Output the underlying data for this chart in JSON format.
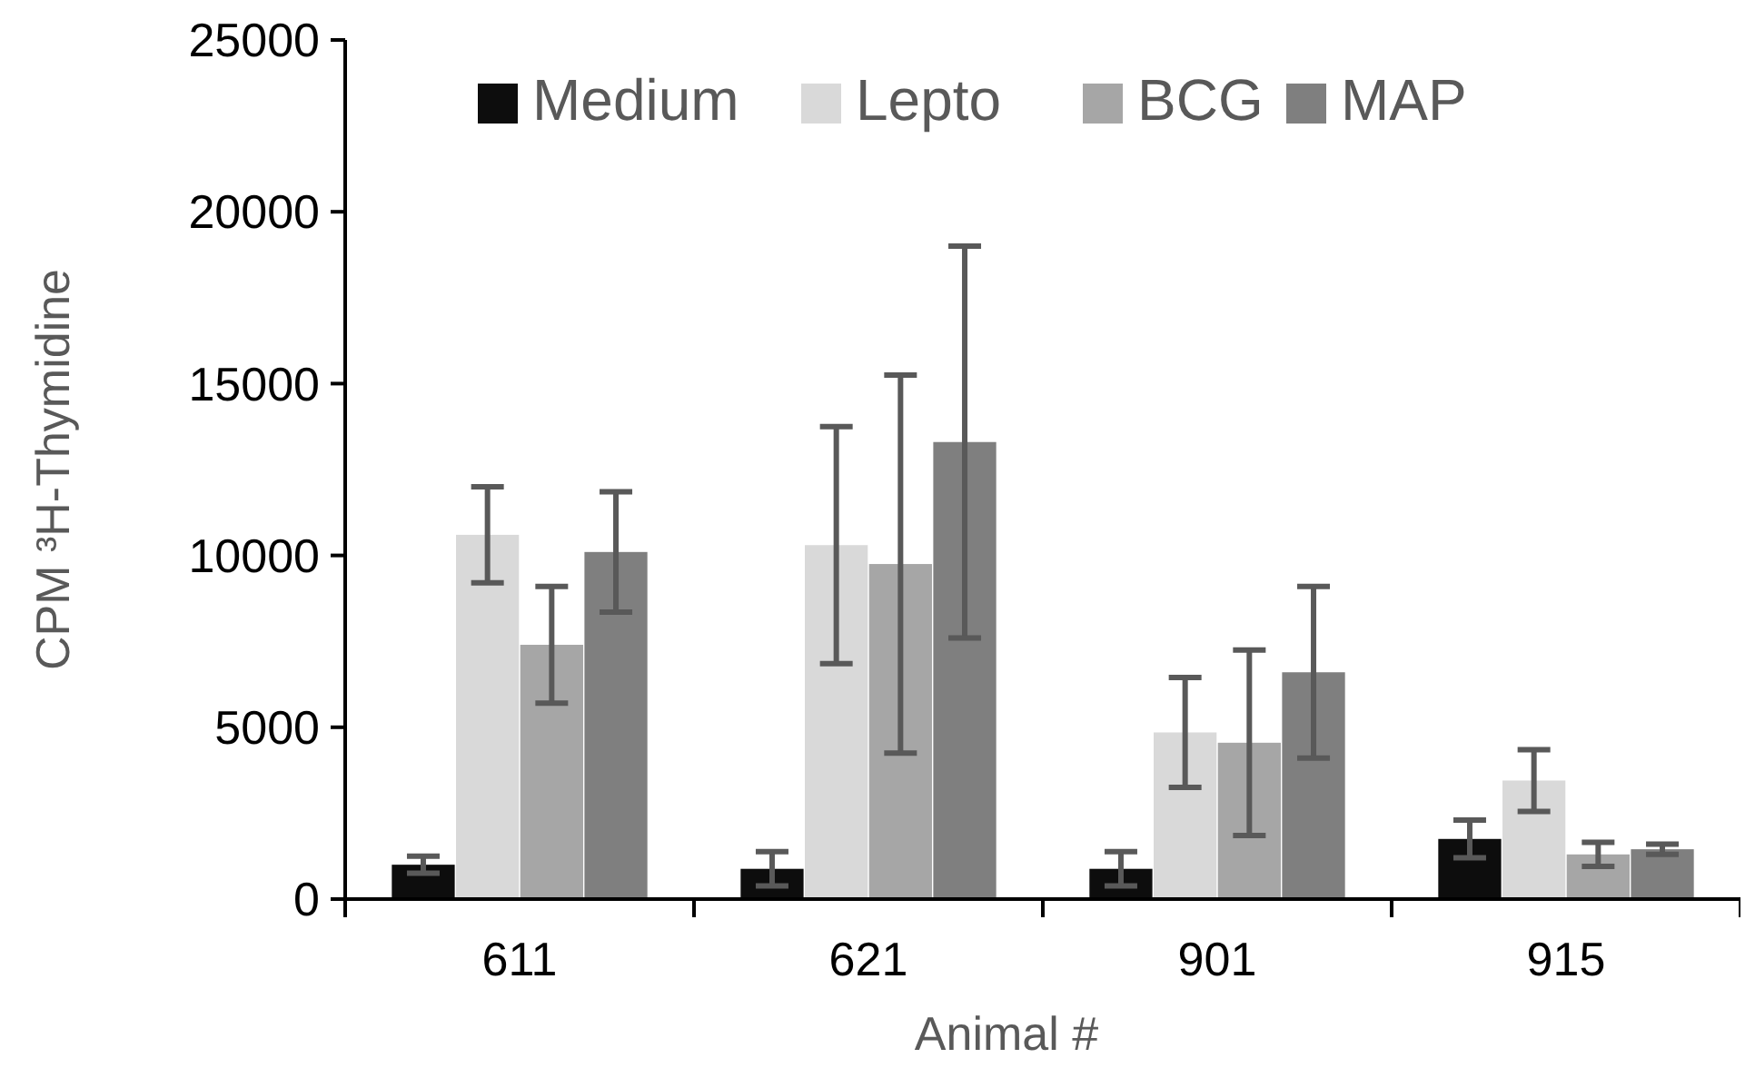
{
  "chart_data": {
    "type": "bar",
    "xlabel": "Animal #",
    "ylabel": "CPM ³H-Thymidine",
    "categories": [
      "611",
      "621",
      "901",
      "915"
    ],
    "series": [
      {
        "name": "Medium",
        "color": "#0d0d0d",
        "values": [
          1000,
          880,
          880,
          1750
        ],
        "errors": [
          250,
          500,
          500,
          550
        ]
      },
      {
        "name": "Lepto",
        "color": "#d9d9d9",
        "values": [
          10600,
          10300,
          4850,
          3450
        ],
        "errors": [
          1400,
          3450,
          1600,
          900
        ]
      },
      {
        "name": "BCG",
        "color": "#a6a6a6",
        "values": [
          7400,
          9750,
          4550,
          1300
        ],
        "errors": [
          1700,
          5500,
          2700,
          350
        ]
      },
      {
        "name": "MAP",
        "color": "#7f7f7f",
        "values": [
          10100,
          13300,
          6600,
          1450
        ],
        "errors": [
          1750,
          5700,
          2500,
          150
        ]
      }
    ],
    "ylim": [
      0,
      25000
    ],
    "yticks": [
      0,
      5000,
      10000,
      15000,
      20000,
      25000
    ],
    "grid": false,
    "legend": "top"
  }
}
